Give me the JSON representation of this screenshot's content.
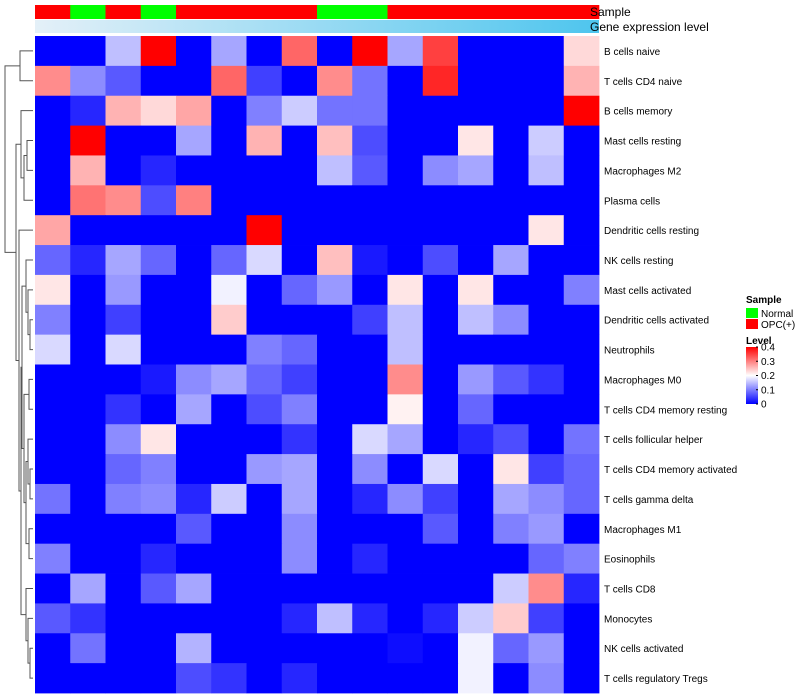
{
  "chart_data": {
    "type": "heatmap",
    "title": "",
    "annotation_labels": {
      "sample": "Sample",
      "expression": "Gene expression level"
    },
    "sample_groups": [
      "OPC(+)",
      "Normal",
      "OPC(+)",
      "Normal",
      "OPC(+)",
      "OPC(+)",
      "OPC(+)",
      "OPC(+)",
      "Normal",
      "Normal",
      "OPC(+)",
      "OPC(+)",
      "OPC(+)",
      "OPC(+)",
      "OPC(+)",
      "OPC(+)"
    ],
    "expression_gradient": [
      "#e4f0f8",
      "#4ec5ee"
    ],
    "rows": [
      "B cells naive",
      "T cells CD4 naive",
      "B cells memory",
      "Mast cells resting",
      "Macrophages M2",
      "Plasma cells",
      "Dendritic cells resting",
      "NK cells resting",
      "Mast cells activated",
      "Dendritic cells activated",
      "Neutrophils",
      "Macrophages M0",
      "T cells CD4 memory resting",
      "T cells follicular helper",
      "T cells CD4 memory activated",
      "T cells gamma delta",
      "Macrophages M1",
      "Eosinophils",
      "T cells CD8",
      "Monocytes",
      "NK cells activated",
      "T cells regulatory  Tregs"
    ],
    "values": [
      [
        0,
        0,
        0.15,
        0.4,
        0,
        0.13,
        0,
        0.32,
        0,
        0.4,
        0.13,
        0.35,
        0,
        0,
        0,
        0.23
      ],
      [
        0.29,
        0.11,
        0.07,
        0,
        0,
        0.32,
        0.05,
        0,
        0.29,
        0.09,
        0,
        0.37,
        0,
        0,
        0,
        0.26
      ],
      [
        0,
        0.03,
        0.26,
        0.23,
        0.27,
        0,
        0.1,
        0.16,
        0.09,
        0.09,
        0,
        0,
        0,
        0,
        0,
        0.4
      ],
      [
        0,
        0.4,
        0,
        0,
        0.13,
        0,
        0.26,
        0,
        0.25,
        0.06,
        0,
        0,
        0.22,
        0,
        0.16,
        0
      ],
      [
        0,
        0.26,
        0,
        0.03,
        0,
        0,
        0,
        0,
        0.15,
        0.07,
        0,
        0.11,
        0.13,
        0,
        0.15,
        0
      ],
      [
        0,
        0.31,
        0.29,
        0.06,
        0.3,
        0,
        0,
        0,
        0,
        0,
        0,
        0,
        0,
        0,
        0,
        0
      ],
      [
        0.27,
        0,
        0,
        0,
        0,
        0,
        0.4,
        0,
        0,
        0,
        0,
        0,
        0,
        0,
        0.22,
        0
      ],
      [
        0.08,
        0.03,
        0.13,
        0.08,
        0,
        0.08,
        0.17,
        0,
        0.25,
        0.02,
        0,
        0.06,
        0,
        0.13,
        0,
        0
      ],
      [
        0.22,
        0,
        0.12,
        0,
        0,
        0.19,
        0,
        0.08,
        0.12,
        0,
        0.22,
        0,
        0.22,
        0,
        0,
        0.1
      ],
      [
        0.1,
        0,
        0.05,
        0,
        0,
        0.24,
        0,
        0,
        0,
        0.05,
        0.15,
        0,
        0.15,
        0.11,
        0,
        0
      ],
      [
        0.17,
        0,
        0.17,
        0,
        0,
        0,
        0.1,
        0.08,
        0,
        0,
        0.15,
        0,
        0,
        0,
        0,
        0
      ],
      [
        0,
        0,
        0,
        0.02,
        0.11,
        0.13,
        0.08,
        0.05,
        0,
        0,
        0.29,
        0,
        0.12,
        0.07,
        0.04,
        0
      ],
      [
        0,
        0,
        0.04,
        0,
        0.13,
        0,
        0.06,
        0.1,
        0,
        0,
        0.21,
        0,
        0.08,
        0,
        0,
        0
      ],
      [
        0,
        0,
        0.11,
        0.22,
        0,
        0,
        0,
        0.04,
        0,
        0.17,
        0.13,
        0,
        0.03,
        0.06,
        0,
        0.09
      ],
      [
        0,
        0,
        0.08,
        0.1,
        0,
        0,
        0.12,
        0.13,
        0,
        0.11,
        0,
        0.17,
        0,
        0.22,
        0.05,
        0.08
      ],
      [
        0.09,
        0,
        0.1,
        0.11,
        0.03,
        0.16,
        0,
        0.13,
        0,
        0.03,
        0.11,
        0.05,
        0,
        0.13,
        0.11,
        0.08
      ],
      [
        0,
        0,
        0,
        0,
        0.07,
        0,
        0,
        0.11,
        0,
        0,
        0,
        0.07,
        0,
        0.1,
        0.12,
        0
      ],
      [
        0.1,
        0,
        0,
        0.03,
        0,
        0,
        0,
        0.11,
        0,
        0.03,
        0,
        0,
        0,
        0,
        0.08,
        0.1
      ],
      [
        0,
        0.13,
        0,
        0.07,
        0.13,
        0,
        0,
        0,
        0,
        0,
        0,
        0,
        0,
        0.16,
        0.29,
        0.03
      ],
      [
        0.07,
        0.04,
        0,
        0,
        0,
        0,
        0,
        0.03,
        0.15,
        0.03,
        0,
        0.03,
        0.16,
        0.24,
        0.05,
        0
      ],
      [
        0,
        0.09,
        0,
        0,
        0.14,
        0,
        0,
        0,
        0,
        0,
        0.01,
        0,
        0.19,
        0.08,
        0.12,
        0
      ],
      [
        0,
        0,
        0,
        0,
        0.06,
        0.04,
        0,
        0.03,
        0,
        0,
        0,
        0,
        0.19,
        0,
        0.11,
        0
      ]
    ],
    "color_scale": {
      "min": 0,
      "max": 0.4,
      "colors": [
        "#0000ff",
        "#ffffff",
        "#ff0000"
      ]
    },
    "legend": {
      "sample_title": "Sample",
      "sample_items": [
        {
          "label": "Normal",
          "color": "#00ff00"
        },
        {
          "label": "OPC(+)",
          "color": "#ff0000"
        }
      ],
      "level_title": "Level",
      "level_ticks": [
        "0.4",
        "0.3",
        "0.2",
        "0.1",
        "0"
      ],
      "level_tick_values": [
        0.4,
        0.3,
        0.2,
        0.1,
        0
      ],
      "placement": "right"
    },
    "dendrogram": "rows clustered (left side)"
  }
}
